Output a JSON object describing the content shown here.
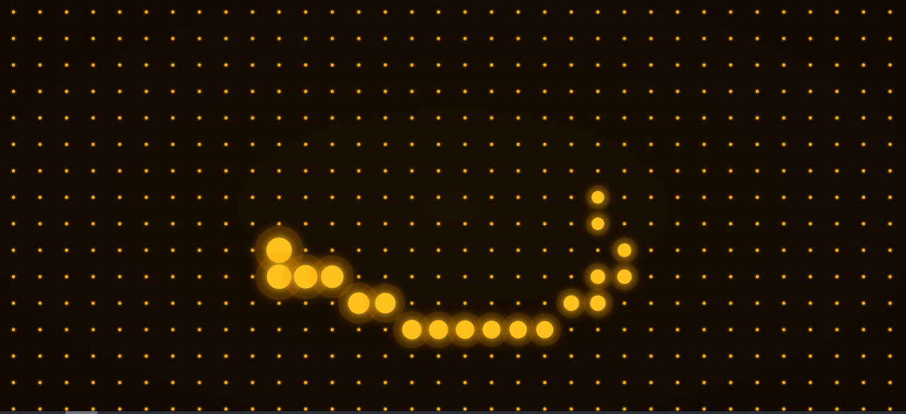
{
  "colors": {
    "background": "#140b02",
    "dot": "#ffb000",
    "dot_core": "#ffc21a",
    "glow": "#ff9a00"
  },
  "grid": {
    "columns": 34,
    "rows": 16
  },
  "lit_dots": [
    {
      "col": 22,
      "row": 7,
      "level": 0.35
    },
    {
      "col": 22,
      "row": 8,
      "level": 0.35
    },
    {
      "col": 23,
      "row": 9,
      "level": 0.4
    },
    {
      "col": 10,
      "row": 9,
      "level": 1.0
    },
    {
      "col": 10,
      "row": 10,
      "level": 0.95
    },
    {
      "col": 11,
      "row": 10,
      "level": 0.9
    },
    {
      "col": 12,
      "row": 10,
      "level": 0.85
    },
    {
      "col": 22,
      "row": 10,
      "level": 0.45
    },
    {
      "col": 23,
      "row": 10,
      "level": 0.45
    },
    {
      "col": 13,
      "row": 11,
      "level": 0.8
    },
    {
      "col": 14,
      "row": 11,
      "level": 0.75
    },
    {
      "col": 21,
      "row": 11,
      "level": 0.5
    },
    {
      "col": 22,
      "row": 11,
      "level": 0.5
    },
    {
      "col": 15,
      "row": 12,
      "level": 0.7
    },
    {
      "col": 16,
      "row": 12,
      "level": 0.68
    },
    {
      "col": 17,
      "row": 12,
      "level": 0.65
    },
    {
      "col": 18,
      "row": 12,
      "level": 0.62
    },
    {
      "col": 19,
      "row": 12,
      "level": 0.6
    },
    {
      "col": 20,
      "row": 12,
      "level": 0.58
    }
  ]
}
